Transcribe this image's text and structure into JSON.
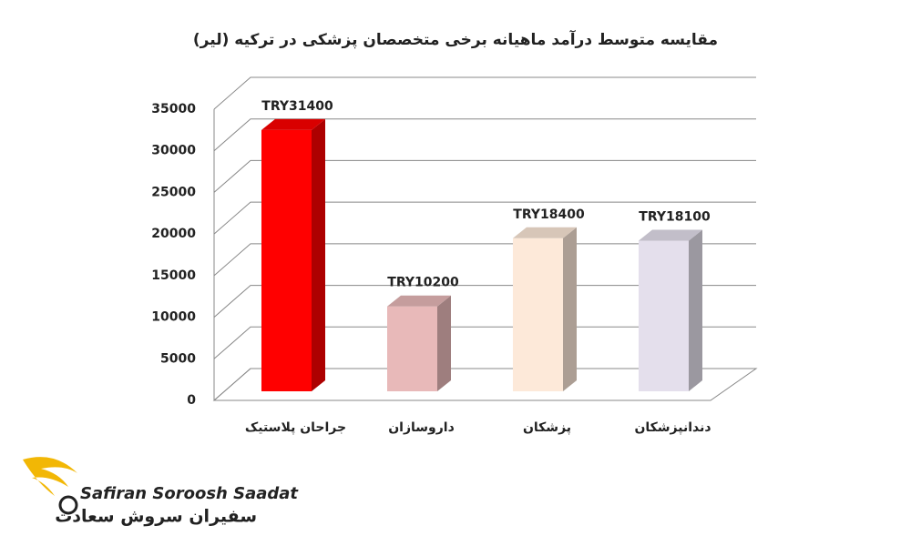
{
  "chart_data": {
    "type": "bar3d",
    "title": "مقایسه متوسط درآمد ماهیانه برخی متخصصان پزشکی در ترکیه (لیر)",
    "categories": [
      "جراحان پلاستیک",
      "داروسازان",
      "پزشکان",
      "دندانپزشکان"
    ],
    "values": [
      31400,
      10200,
      18400,
      18100
    ],
    "value_labels": [
      "TRY31400",
      "TRY10200",
      "TRY18400",
      "TRY18100"
    ],
    "colors": [
      "#ff0000",
      "#e8b9b9",
      "#fde9d9",
      "#e4dfec"
    ],
    "ylim": [
      0,
      35000
    ],
    "yticks": [
      0,
      5000,
      10000,
      15000,
      20000,
      25000,
      30000,
      35000
    ],
    "grid": true
  },
  "logo": {
    "name_en": "Safiran Soroosh Saadat",
    "name_fa": "سفیران سروش سعادت"
  }
}
